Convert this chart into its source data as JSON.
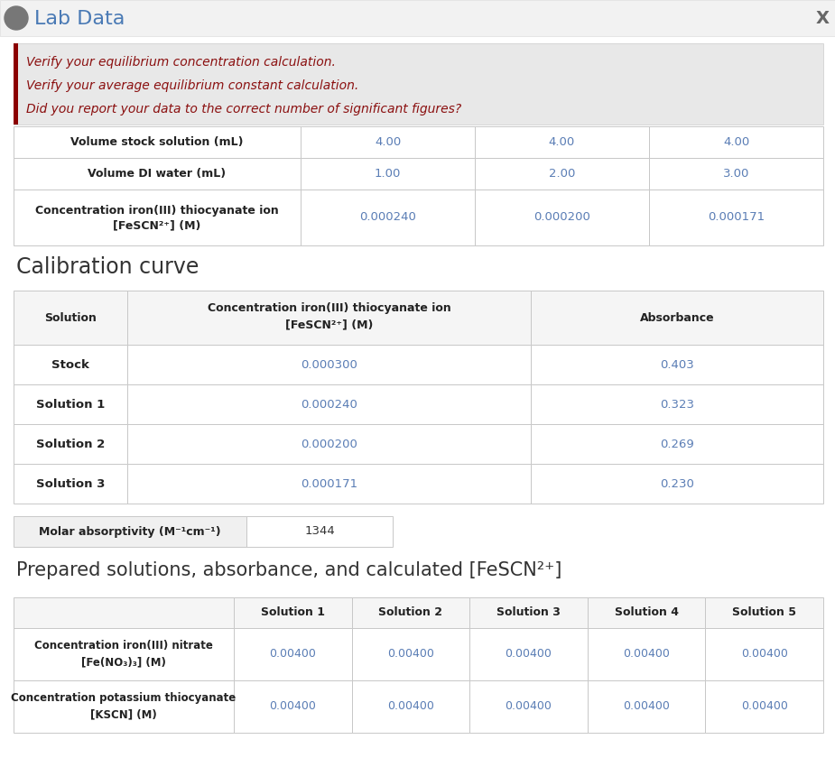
{
  "title": "Lab Data",
  "bg_color": "#ffffff",
  "title_bar_bg": "#f0f0f0",
  "title_bar_border": "#dddddd",
  "title_color": "#4a7ab5",
  "title_fontsize": 16,
  "x_color": "#666666",
  "alert_bg": "#e8e8e8",
  "alert_border": "#cccccc",
  "alert_red_bar": "#8B0000",
  "alert_text_color": "#8B1010",
  "alert_lines": [
    "Verify your equilibrium concentration calculation.",
    "Verify your average equilibrium constant calculation.",
    "Did you report your data to the correct number of significant figures?"
  ],
  "table_border": "#c8c8c8",
  "table_header_bg": "#f5f5f5",
  "dark_text": "#333333",
  "blue_text": "#5a7db5",
  "bold_text": "#222222",
  "top_rows": [
    [
      "Volume stock solution (mL)",
      "4.00",
      "4.00",
      "4.00"
    ],
    [
      "Volume DI water (mL)",
      "1.00",
      "2.00",
      "3.00"
    ],
    [
      "Concentration iron(III) thiocyanate ion\n[FeSCN²⁺] (M)",
      "0.000240",
      "0.000200",
      "0.000171"
    ]
  ],
  "calib_title": "Calibration curve",
  "calib_headers": [
    "Solution",
    "Concentration iron(III) thiocyanate ion\n[FeSCN²⁺] (M)",
    "Absorbance"
  ],
  "calib_rows": [
    [
      "Stock",
      "0.000300",
      "0.403"
    ],
    [
      "Solution 1",
      "0.000240",
      "0.323"
    ],
    [
      "Solution 2",
      "0.000200",
      "0.269"
    ],
    [
      "Solution 3",
      "0.000171",
      "0.230"
    ]
  ],
  "molar_label": "Molar absorptivity (M⁻¹cm⁻¹)",
  "molar_value": "1344",
  "prep_title": "Prepared solutions, absorbance, and calculated [FeSCN²⁺]",
  "prep_headers": [
    "",
    "Solution 1",
    "Solution 2",
    "Solution 3",
    "Solution 4",
    "Solution 5"
  ],
  "prep_rows": [
    [
      "Concentration iron(III) nitrate\n[Fe(NO₃)₃] (M)",
      "0.00400",
      "0.00400",
      "0.00400",
      "0.00400",
      "0.00400"
    ],
    [
      "Concentration potassium thiocyanate\n[KSCN] (M)",
      "0.00400",
      "0.00400",
      "0.00400",
      "0.00400",
      "0.00400"
    ]
  ]
}
